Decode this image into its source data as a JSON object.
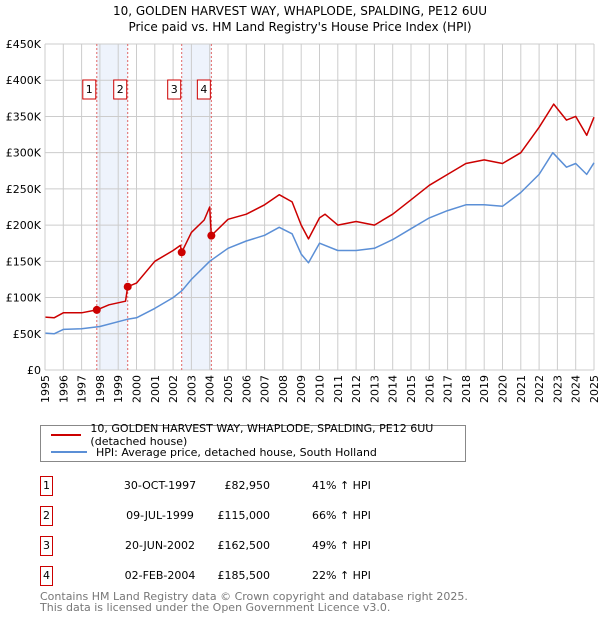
{
  "title": "10, GOLDEN HARVEST WAY, WHAPLODE, SPALDING, PE12 6UU",
  "subtitle": "Price paid vs. HM Land Registry's House Price Index (HPI)",
  "chart_data": {
    "type": "line",
    "title": "10, GOLDEN HARVEST WAY, WHAPLODE, SPALDING, PE12 6UU",
    "subtitle": "Price paid vs. HM Land Registry's House Price Index (HPI)",
    "xlabel": "",
    "ylabel": "",
    "xlim": [
      1995,
      2025
    ],
    "ylim": [
      0,
      450000
    ],
    "grid": true,
    "y_ticks": [
      "£0",
      "£50K",
      "£100K",
      "£150K",
      "£200K",
      "£250K",
      "£300K",
      "£350K",
      "£400K",
      "£450K"
    ],
    "x_ticks": [
      "1995",
      "1996",
      "1997",
      "1998",
      "1999",
      "2000",
      "2001",
      "2002",
      "2003",
      "2004",
      "2005",
      "2006",
      "2007",
      "2008",
      "2009",
      "2010",
      "2011",
      "2012",
      "2013",
      "2014",
      "2015",
      "2016",
      "2017",
      "2018",
      "2019",
      "2020",
      "2021",
      "2022",
      "2023",
      "2024",
      "2025"
    ],
    "series": [
      {
        "name": "10, GOLDEN HARVEST WAY, WHAPLODE, SPALDING, PE12 6UU (detached house)",
        "color": "#cc0000",
        "x": [
          1995,
          1995.5,
          1996,
          1997,
          1997.83,
          1998.5,
          1999.4,
          1999.52,
          2000,
          2001,
          2002,
          2002.4,
          2002.47,
          2003,
          2003.7,
          2004.0,
          2004.09,
          2005,
          2006,
          2007,
          2007.8,
          2008.5,
          2009,
          2009.4,
          2010,
          2010.3,
          2011,
          2012,
          2013,
          2014,
          2015,
          2016,
          2017,
          2018,
          2019,
          2020,
          2021,
          2022,
          2022.8,
          2023.5,
          2024,
          2024.6,
          2025
        ],
        "y": [
          73000,
          72000,
          79000,
          79000,
          82950,
          90000,
          95000,
          115000,
          120000,
          150000,
          165000,
          172000,
          162500,
          190000,
          207000,
          225000,
          185500,
          208000,
          215000,
          228000,
          242000,
          232000,
          200000,
          181000,
          210000,
          215000,
          200000,
          205000,
          200000,
          215000,
          235000,
          255000,
          270000,
          285000,
          290000,
          285000,
          300000,
          335000,
          367000,
          345000,
          350000,
          324000,
          349000
        ]
      },
      {
        "name": "HPI: Average price, detached house, South Holland",
        "color": "#5b8fd6",
        "x": [
          1995,
          1995.5,
          1996,
          1997,
          1998,
          1999.5,
          2000,
          2001,
          2002,
          2002.5,
          2003,
          2004,
          2005,
          2006,
          2007,
          2007.8,
          2008.5,
          2009,
          2009.4,
          2010,
          2011,
          2012,
          2013,
          2014,
          2015,
          2016,
          2017,
          2018,
          2019,
          2020,
          2021,
          2022,
          2022.75,
          2023.5,
          2024,
          2024.6,
          2025
        ],
        "y": [
          51000,
          50000,
          56000,
          57000,
          60000,
          70000,
          72000,
          85000,
          100000,
          110000,
          125000,
          150000,
          168000,
          178000,
          186000,
          197000,
          188000,
          160000,
          148000,
          175000,
          165000,
          165000,
          168000,
          180000,
          195000,
          210000,
          220000,
          228000,
          228000,
          226000,
          245000,
          270000,
          300000,
          280000,
          285000,
          270000,
          286000
        ]
      }
    ],
    "sales": [
      {
        "label": "1",
        "date": "30-OCT-1997",
        "x": 1997.83,
        "price": 82950,
        "price_text": "£82,950",
        "hpi_text": "41% ↑ HPI"
      },
      {
        "label": "2",
        "date": "09-JUL-1999",
        "x": 1999.52,
        "price": 115000,
        "price_text": "£115,000",
        "hpi_text": "66% ↑ HPI"
      },
      {
        "label": "3",
        "date": "20-JUN-2002",
        "x": 2002.47,
        "price": 162500,
        "price_text": "£162,500",
        "hpi_text": "49% ↑ HPI"
      },
      {
        "label": "4",
        "date": "02-FEB-2004",
        "x": 2004.09,
        "price": 185500,
        "price_text": "£185,500",
        "hpi_text": "22% ↑ HPI"
      }
    ],
    "shaded_ranges": [
      [
        1997.83,
        1999.52
      ],
      [
        2002.47,
        2004.09
      ]
    ],
    "legend": [
      "10, GOLDEN HARVEST WAY, WHAPLODE, SPALDING, PE12 6UU (detached house)",
      "HPI: Average price, detached house, South Holland"
    ],
    "legend_placement": "below"
  },
  "footer": {
    "line1": "Contains HM Land Registry data © Crown copyright and database right 2025.",
    "line2": "This data is licensed under the Open Government Licence v3.0."
  }
}
